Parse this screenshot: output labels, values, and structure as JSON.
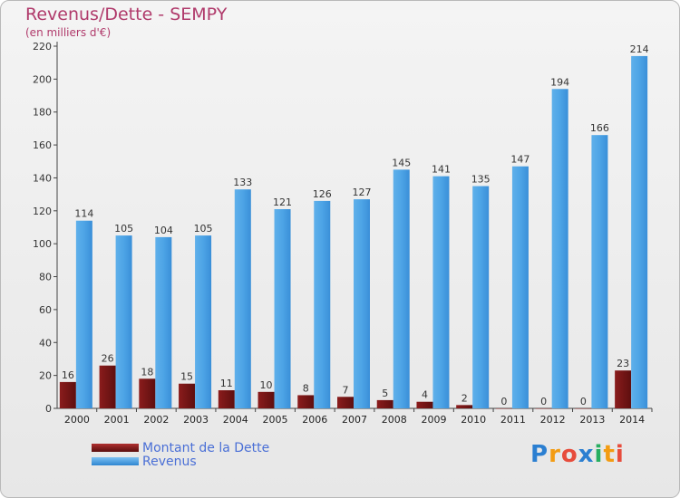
{
  "chart_data": {
    "type": "bar",
    "title": "Revenus/Dette - SEMPY",
    "subtitle": "(en milliers d'€)",
    "categories": [
      "2000",
      "2001",
      "2002",
      "2003",
      "2004",
      "2005",
      "2006",
      "2007",
      "2008",
      "2009",
      "2010",
      "2011",
      "2012",
      "2013",
      "2014"
    ],
    "series": [
      {
        "name": "Montant de la Dette",
        "color": "#7a1515",
        "values": [
          16,
          26,
          18,
          15,
          11,
          10,
          8,
          7,
          5,
          4,
          2,
          0,
          0,
          0,
          23
        ]
      },
      {
        "name": "Revenus",
        "color": "#4a9fe0",
        "values": [
          114,
          105,
          104,
          105,
          133,
          121,
          126,
          127,
          145,
          141,
          135,
          147,
          194,
          166,
          214
        ]
      }
    ],
    "ylim": [
      0,
      220
    ],
    "yticks": [
      0,
      20,
      40,
      60,
      80,
      100,
      120,
      140,
      160,
      180,
      200,
      220
    ],
    "grid": false,
    "legend": "bottom-left"
  },
  "logo": {
    "text": "Proxiti",
    "letters": [
      {
        "ch": "P",
        "color": "#2b7fd1"
      },
      {
        "ch": "r",
        "color": "#f39c12"
      },
      {
        "ch": "o",
        "color": "#e74c3c"
      },
      {
        "ch": "x",
        "color": "#2b7fd1"
      },
      {
        "ch": "i",
        "color": "#27ae60"
      },
      {
        "ch": "t",
        "color": "#f39c12"
      },
      {
        "ch": "i",
        "color": "#e74c3c"
      }
    ]
  }
}
